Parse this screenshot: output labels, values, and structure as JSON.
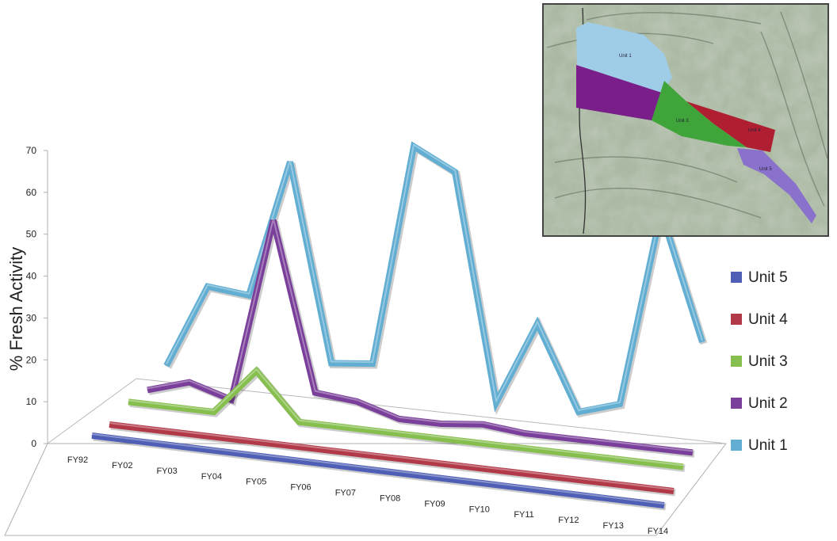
{
  "chart_data": {
    "type": "line",
    "style": "3d",
    "ylabel": "% Fresh Activity",
    "ylim": [
      0,
      70
    ],
    "yticks": [
      0,
      10,
      20,
      30,
      40,
      50,
      60,
      70
    ],
    "categories": [
      "FY92",
      "FY02",
      "FY03",
      "FY04",
      "FY05",
      "FY06",
      "FY07",
      "FY08",
      "FY09",
      "FY10",
      "FY11",
      "FY12",
      "FY13",
      "FY14"
    ],
    "series": [
      {
        "name": "Unit 5",
        "color": "#4f5fb5",
        "values": [
          0,
          0,
          0,
          0,
          0,
          0,
          0,
          0,
          0,
          0,
          0,
          0,
          0,
          0
        ]
      },
      {
        "name": "Unit 4",
        "color": "#b23a48",
        "values": [
          0,
          0,
          0,
          0,
          0,
          0,
          0,
          0,
          0,
          0,
          0,
          0,
          0,
          0
        ]
      },
      {
        "name": "Unit 3",
        "color": "#86bf4e",
        "values": [
          2,
          2,
          2,
          13,
          2,
          2,
          2,
          2,
          2,
          2,
          2,
          2,
          2,
          2
        ]
      },
      {
        "name": "Unit 2",
        "color": "#7a3f9a",
        "values": [
          2,
          5,
          2,
          46,
          6,
          5,
          2,
          2,
          3,
          2,
          2,
          2,
          2,
          2
        ]
      },
      {
        "name": "Unit 1",
        "color": "#62aed2",
        "values": [
          5,
          25,
          24,
          57,
          10,
          11,
          64,
          59,
          5,
          25,
          5,
          8,
          55,
          25
        ]
      }
    ],
    "legend_position": "right",
    "legend_order": [
      "Unit 5",
      "Unit 4",
      "Unit 3",
      "Unit 2",
      "Unit 1"
    ]
  },
  "map_inset": {
    "labels": [
      "Unit 1",
      "Unit 3",
      "Unit 4",
      "Unit 5"
    ],
    "colors": {
      "unit1": "#9fcde8",
      "unit2": "#7a1e8a",
      "unit3": "#3fa53a",
      "unit4": "#b01e32",
      "unit5": "#8a72cc",
      "terrain": "#a9b9a2"
    }
  }
}
